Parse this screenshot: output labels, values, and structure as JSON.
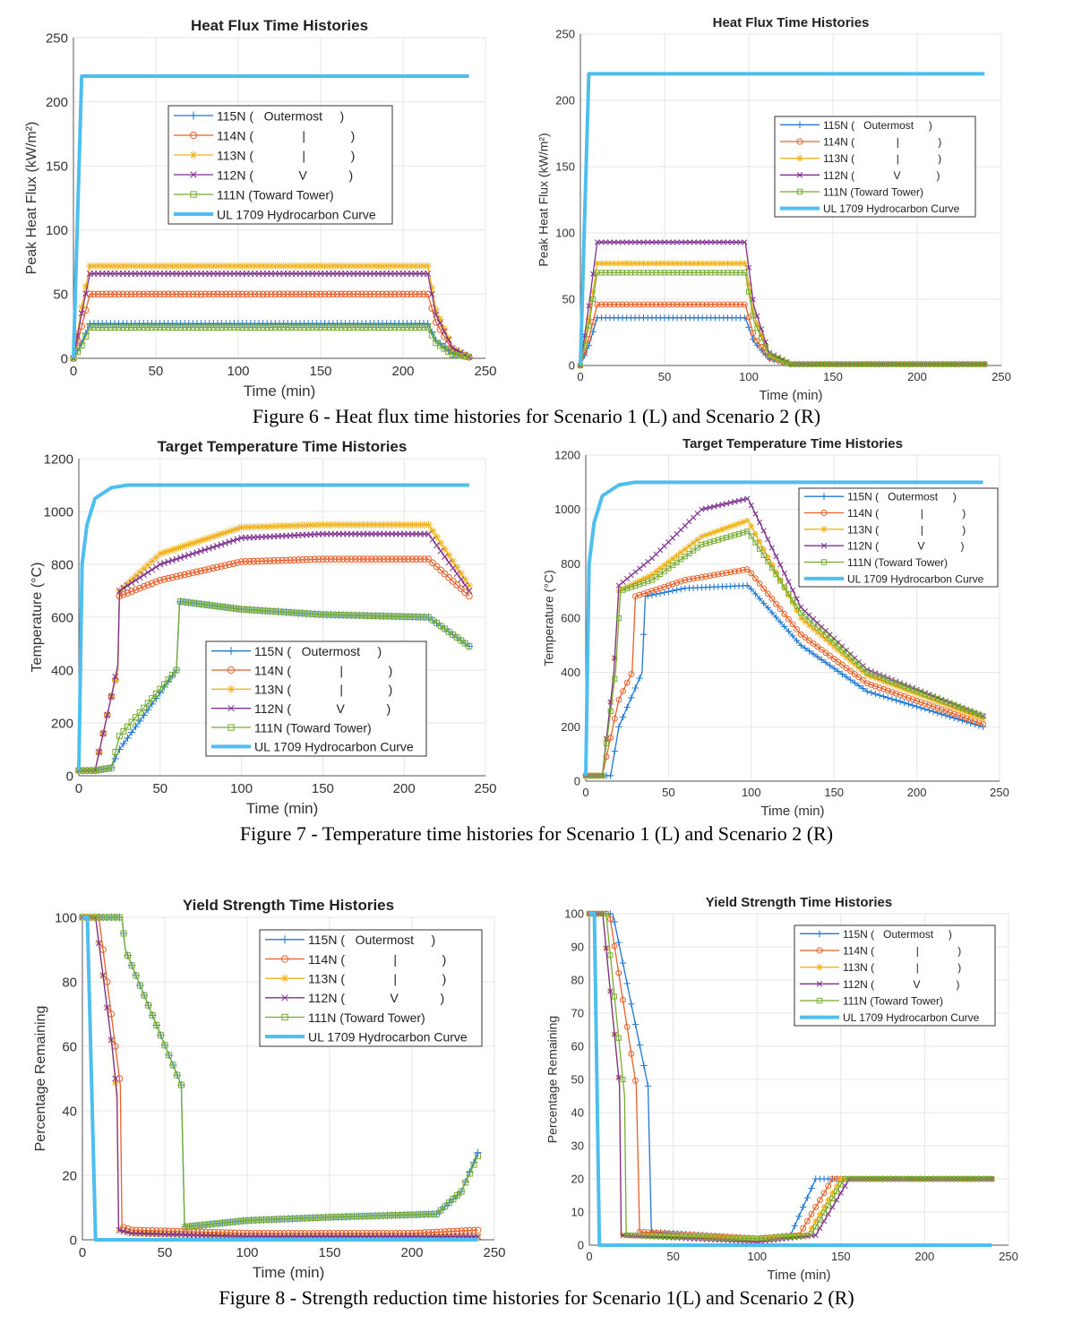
{
  "captions": {
    "fig6": "Figure 6 - Heat flux time histories for Scenario 1 (L) and Scenario 2 (R)",
    "fig7": "Figure 7 - Temperature time histories for Scenario 1 (L) and Scenario 2 (R)",
    "fig8": "Figure 8 - Strength reduction time histories for Scenario 1(L) and Scenario 2 (R)"
  },
  "colors": {
    "115N": "#1f77d4",
    "114N": "#e8602a",
    "113N": "#f2b21c",
    "112N": "#7e2f8e",
    "111N": "#77ac30",
    "UL": "#4dbeee"
  },
  "chart_data": [
    {
      "id": "hf_s1",
      "type": "line",
      "title": "Heat Flux Time Histories",
      "xlabel": "Time (min)",
      "ylabel": "Peak Heat Flux (kW/m²)",
      "xlim": [
        0,
        250
      ],
      "ylim": [
        0,
        250
      ],
      "xticks": [
        0,
        50,
        100,
        150,
        200,
        250
      ],
      "yticks": [
        0,
        50,
        100,
        150,
        200,
        250
      ],
      "legend_position": "center",
      "series": [
        {
          "key": "115N",
          "name": "115N (   Outermost     )",
          "marker": "plus",
          "x": [
            0,
            5,
            10,
            215,
            220,
            230,
            240
          ],
          "y": [
            0,
            12,
            27,
            27,
            14,
            4,
            1
          ]
        },
        {
          "key": "114N",
          "name": "114N (              |             )",
          "marker": "circle",
          "x": [
            0,
            5,
            10,
            215,
            220,
            230,
            240
          ],
          "y": [
            0,
            25,
            50,
            50,
            28,
            6,
            1
          ]
        },
        {
          "key": "113N",
          "name": "113N (              |             )",
          "marker": "star",
          "x": [
            0,
            5,
            10,
            215,
            220,
            230,
            240
          ],
          "y": [
            0,
            40,
            72,
            72,
            38,
            8,
            1
          ]
        },
        {
          "key": "112N",
          "name": "112N (             V            )",
          "marker": "x",
          "x": [
            0,
            5,
            10,
            215,
            220,
            230,
            240
          ],
          "y": [
            0,
            35,
            66,
            66,
            34,
            8,
            1
          ]
        },
        {
          "key": "111N",
          "name": "111N (Toward Tower)",
          "marker": "square",
          "x": [
            0,
            5,
            10,
            215,
            220,
            230,
            240
          ],
          "y": [
            0,
            10,
            24,
            24,
            12,
            3,
            1
          ]
        },
        {
          "key": "UL",
          "name": "UL 1709 Hydrocarbon Curve",
          "marker": "none",
          "x": [
            0,
            5,
            240
          ],
          "y": [
            0,
            220,
            220
          ]
        }
      ]
    },
    {
      "id": "hf_s2",
      "type": "line",
      "title": "Heat Flux Time Histories",
      "xlabel": "Time (min)",
      "ylabel": "Peak Heat Flux (kW/m²)",
      "xlim": [
        0,
        250
      ],
      "ylim": [
        0,
        250
      ],
      "xticks": [
        0,
        50,
        100,
        150,
        200,
        250
      ],
      "yticks": [
        0,
        50,
        100,
        150,
        200,
        250
      ],
      "legend_position": "top-right",
      "series": [
        {
          "key": "115N",
          "name": "115N (   Outermost     )",
          "marker": "plus",
          "x": [
            0,
            5,
            10,
            98,
            103,
            112,
            125,
            240
          ],
          "y": [
            0,
            15,
            36,
            36,
            18,
            5,
            1,
            1
          ]
        },
        {
          "key": "114N",
          "name": "114N (              |             )",
          "marker": "circle",
          "x": [
            0,
            5,
            10,
            98,
            103,
            112,
            125,
            240
          ],
          "y": [
            0,
            20,
            46,
            46,
            22,
            6,
            1,
            1
          ]
        },
        {
          "key": "113N",
          "name": "113N (              |             )",
          "marker": "star",
          "x": [
            0,
            5,
            10,
            98,
            103,
            112,
            125,
            240
          ],
          "y": [
            0,
            35,
            77,
            77,
            38,
            8,
            1,
            1
          ]
        },
        {
          "key": "112N",
          "name": "112N (             V            )",
          "marker": "x",
          "x": [
            0,
            5,
            10,
            98,
            103,
            112,
            125,
            240
          ],
          "y": [
            0,
            45,
            93,
            93,
            45,
            10,
            1,
            1
          ]
        },
        {
          "key": "111N",
          "name": "111N (Toward Tower)",
          "marker": "square",
          "x": [
            0,
            5,
            10,
            98,
            103,
            112,
            125,
            240
          ],
          "y": [
            0,
            30,
            70,
            70,
            34,
            8,
            1,
            1
          ]
        },
        {
          "key": "UL",
          "name": "UL 1709 Hydrocarbon Curve",
          "marker": "none",
          "x": [
            0,
            5,
            240
          ],
          "y": [
            0,
            220,
            220
          ]
        }
      ]
    },
    {
      "id": "temp_s1",
      "type": "line",
      "title": "Target Temperature Time Histories",
      "xlabel": "Time (min)",
      "ylabel": "Temperature (°C)",
      "xlim": [
        0,
        250
      ],
      "ylim": [
        0,
        1200
      ],
      "xticks": [
        0,
        50,
        100,
        150,
        200,
        250
      ],
      "yticks": [
        0,
        200,
        400,
        600,
        800,
        1000,
        1200
      ],
      "legend_position": "bottom-right",
      "series": [
        {
          "key": "115N",
          "name": "115N (   Outermost     )",
          "marker": "plus",
          "x": [
            0,
            10,
            20,
            25,
            60,
            62,
            100,
            150,
            215,
            240
          ],
          "y": [
            20,
            20,
            30,
            100,
            400,
            660,
            630,
            610,
            600,
            490
          ]
        },
        {
          "key": "114N",
          "name": "114N (              |             )",
          "marker": "circle",
          "x": [
            0,
            10,
            20,
            24,
            25,
            50,
            100,
            150,
            215,
            240
          ],
          "y": [
            20,
            20,
            300,
            400,
            680,
            740,
            810,
            820,
            820,
            680
          ]
        },
        {
          "key": "113N",
          "name": "113N (              |             )",
          "marker": "star",
          "x": [
            0,
            10,
            20,
            24,
            25,
            50,
            100,
            150,
            215,
            240
          ],
          "y": [
            20,
            20,
            300,
            400,
            700,
            840,
            940,
            950,
            950,
            720
          ]
        },
        {
          "key": "112N",
          "name": "112N (             V            )",
          "marker": "x",
          "x": [
            0,
            10,
            20,
            24,
            25,
            50,
            100,
            150,
            215,
            240
          ],
          "y": [
            20,
            20,
            300,
            420,
            700,
            800,
            900,
            915,
            915,
            700
          ]
        },
        {
          "key": "111N",
          "name": "111N (Toward Tower)",
          "marker": "square",
          "x": [
            0,
            10,
            20,
            25,
            60,
            62,
            100,
            150,
            215,
            240
          ],
          "y": [
            20,
            20,
            30,
            150,
            400,
            660,
            630,
            610,
            600,
            490
          ]
        },
        {
          "key": "UL",
          "name": "UL 1709 Hydrocarbon Curve",
          "marker": "none",
          "x": [
            0,
            2,
            5,
            10,
            20,
            30,
            240
          ],
          "y": [
            20,
            800,
            950,
            1050,
            1090,
            1100,
            1100
          ]
        }
      ]
    },
    {
      "id": "temp_s2",
      "type": "line",
      "title": "Target Temperature Time Histories",
      "xlabel": "Time (min)",
      "ylabel": "Temperature (°C)",
      "xlim": [
        0,
        250
      ],
      "ylim": [
        0,
        1200
      ],
      "xticks": [
        0,
        50,
        100,
        150,
        200,
        250
      ],
      "yticks": [
        0,
        200,
        400,
        600,
        800,
        1000,
        1200
      ],
      "legend_position": "top-right",
      "series": [
        {
          "key": "115N",
          "name": "115N (   Outermost     )",
          "marker": "plus",
          "x": [
            0,
            15,
            20,
            34,
            36,
            60,
            98,
            130,
            170,
            240
          ],
          "y": [
            20,
            20,
            200,
            400,
            680,
            710,
            720,
            500,
            330,
            200
          ]
        },
        {
          "key": "114N",
          "name": "114N (              |             )",
          "marker": "circle",
          "x": [
            0,
            10,
            20,
            28,
            30,
            60,
            98,
            130,
            170,
            240
          ],
          "y": [
            20,
            20,
            300,
            400,
            680,
            740,
            780,
            540,
            360,
            210
          ]
        },
        {
          "key": "113N",
          "name": "113N (              |             )",
          "marker": "star",
          "x": [
            0,
            10,
            17,
            20,
            40,
            70,
            98,
            130,
            170,
            240
          ],
          "y": [
            20,
            20,
            400,
            700,
            760,
            900,
            960,
            600,
            390,
            230
          ]
        },
        {
          "key": "112N",
          "name": "112N (             V            )",
          "marker": "x",
          "x": [
            0,
            10,
            17,
            20,
            40,
            70,
            98,
            130,
            170,
            240
          ],
          "y": [
            20,
            20,
            400,
            720,
            820,
            1000,
            1040,
            640,
            410,
            240
          ]
        },
        {
          "key": "111N",
          "name": "111N (Toward Tower)",
          "marker": "square",
          "x": [
            0,
            10,
            18,
            21,
            40,
            70,
            98,
            130,
            170,
            240
          ],
          "y": [
            20,
            20,
            400,
            700,
            740,
            870,
            920,
            620,
            400,
            240
          ]
        },
        {
          "key": "UL",
          "name": "UL 1709 Hydrocarbon Curve",
          "marker": "none",
          "x": [
            0,
            2,
            5,
            10,
            20,
            30,
            240
          ],
          "y": [
            20,
            800,
            950,
            1050,
            1090,
            1100,
            1100
          ]
        }
      ]
    },
    {
      "id": "ys_s1",
      "type": "line",
      "title": "Yield Strength Time Histories",
      "xlabel": "Time (min)",
      "ylabel": "Percentage Remaining",
      "xlim": [
        0,
        250
      ],
      "ylim": [
        0,
        100
      ],
      "xticks": [
        0,
        50,
        100,
        150,
        200,
        250
      ],
      "yticks": [
        0,
        20,
        40,
        60,
        80,
        100
      ],
      "legend_position": "top-right",
      "series": [
        {
          "key": "115N",
          "name": "115N (   Outermost     )",
          "marker": "plus",
          "x": [
            0,
            24,
            26,
            60,
            62,
            100,
            150,
            215,
            230,
            240
          ],
          "y": [
            100,
            100,
            90,
            48,
            4,
            6,
            7,
            8,
            15,
            27
          ]
        },
        {
          "key": "114N",
          "name": "114N (              |             )",
          "marker": "circle",
          "x": [
            0,
            10,
            20,
            23,
            24,
            30,
            100,
            200,
            240
          ],
          "y": [
            100,
            100,
            60,
            48,
            4,
            3,
            2,
            2,
            3
          ]
        },
        {
          "key": "113N",
          "name": "113N (              |             )",
          "marker": "star",
          "x": [
            0,
            8,
            18,
            21,
            22,
            30,
            100,
            240
          ],
          "y": [
            100,
            100,
            60,
            43,
            3,
            2,
            1,
            1
          ]
        },
        {
          "key": "112N",
          "name": "112N (             V            )",
          "marker": "x",
          "x": [
            0,
            8,
            18,
            21,
            22,
            30,
            100,
            240
          ],
          "y": [
            100,
            100,
            60,
            45,
            3,
            2,
            1,
            1
          ]
        },
        {
          "key": "111N",
          "name": "111N (Toward Tower)",
          "marker": "square",
          "x": [
            0,
            24,
            26,
            60,
            62,
            100,
            150,
            215,
            230,
            240
          ],
          "y": [
            100,
            100,
            90,
            48,
            4,
            6,
            7,
            8,
            15,
            26
          ]
        },
        {
          "key": "UL",
          "name": "UL 1709 Hydrocarbon Curve",
          "marker": "none",
          "x": [
            0,
            3,
            8,
            240
          ],
          "y": [
            100,
            100,
            0,
            0
          ]
        }
      ]
    },
    {
      "id": "ys_s2",
      "type": "line",
      "title": "Yield Strength Time Histories",
      "xlabel": "Time (min)",
      "ylabel": "Percentage Remaining",
      "xlim": [
        0,
        250
      ],
      "ylim": [
        0,
        100
      ],
      "xticks": [
        0,
        50,
        100,
        150,
        200,
        250
      ],
      "yticks": [
        0,
        10,
        20,
        30,
        40,
        50,
        60,
        70,
        80,
        90,
        100
      ],
      "legend_position": "top-right",
      "series": [
        {
          "key": "115N",
          "name": "115N (   Outermost     )",
          "marker": "plus",
          "x": [
            0,
            14,
            35,
            37,
            100,
            120,
            135,
            240
          ],
          "y": [
            100,
            100,
            48,
            4,
            2,
            3,
            20,
            20
          ]
        },
        {
          "key": "114N",
          "name": "114N (              |             )",
          "marker": "circle",
          "x": [
            0,
            12,
            28,
            30,
            100,
            125,
            145,
            240
          ],
          "y": [
            100,
            100,
            48,
            4,
            2,
            3,
            20,
            20
          ]
        },
        {
          "key": "113N",
          "name": "113N (              |             )",
          "marker": "star",
          "x": [
            0,
            8,
            18,
            19,
            100,
            130,
            150,
            240
          ],
          "y": [
            100,
            100,
            48,
            3,
            2,
            3,
            20,
            20
          ]
        },
        {
          "key": "112N",
          "name": "112N (             V            )",
          "marker": "x",
          "x": [
            0,
            8,
            18,
            19,
            100,
            135,
            155,
            240
          ],
          "y": [
            100,
            100,
            48,
            3,
            1,
            3,
            20,
            20
          ]
        },
        {
          "key": "111N",
          "name": "111N (Toward Tower)",
          "marker": "square",
          "x": [
            0,
            10,
            21,
            22,
            100,
            132,
            152,
            240
          ],
          "y": [
            100,
            100,
            45,
            3,
            2,
            3,
            20,
            20
          ]
        },
        {
          "key": "UL",
          "name": "UL 1709 Hydrocarbon Curve",
          "marker": "none",
          "x": [
            0,
            3,
            6,
            240
          ],
          "y": [
            100,
            100,
            0,
            0
          ]
        }
      ]
    }
  ]
}
